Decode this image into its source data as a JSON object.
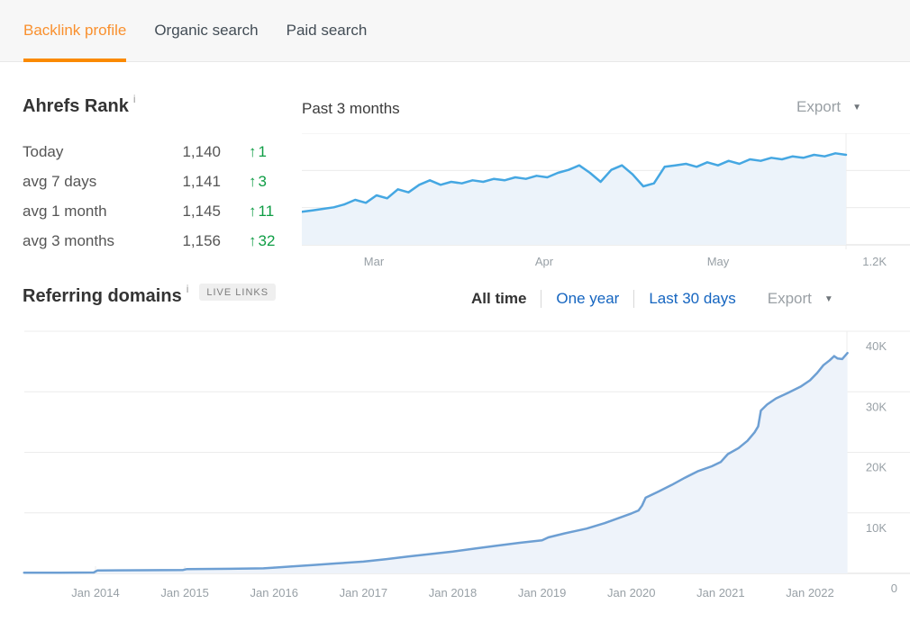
{
  "colors": {
    "accent_orange": "#fb8a00",
    "active_tab_text": "#f9902e",
    "link_blue": "#1565c0",
    "positive_green": "#0f9d45",
    "rank_line_blue": "#45a7e2",
    "domains_line_blue": "#6d9fd3",
    "area_fill": "#eef3fa",
    "grid_gray": "#ececec",
    "axis_label_gray": "#98a0a6",
    "tabbar_bg": "#f7f7f7"
  },
  "tab_bar": {
    "tabs": [
      {
        "label": "Backlink profile",
        "active": true
      },
      {
        "label": "Organic search",
        "active": false
      },
      {
        "label": "Paid search",
        "active": false
      }
    ]
  },
  "ahrefs_rank": {
    "title": "Ahrefs Rank",
    "info_icon": "i",
    "up_arrow": "↑",
    "rows": [
      {
        "label": "Today",
        "value": "1,140",
        "change": "1"
      },
      {
        "label": "avg 7 days",
        "value": "1,141",
        "change": "3"
      },
      {
        "label": "avg 1 month",
        "value": "1,145",
        "change": "11"
      },
      {
        "label": "avg 3 months",
        "value": "1,156",
        "change": "32"
      }
    ]
  },
  "rank_panel": {
    "title": "Past 3 months",
    "export_label": "Export",
    "caret_icon": "▼"
  },
  "referring_panel": {
    "title": "Referring domains",
    "info_icon": "i",
    "badge": "LIVE LINKS",
    "filters": [
      {
        "label": "All time",
        "active": true
      },
      {
        "label": "One year",
        "active": false
      },
      {
        "label": "Last 30 days",
        "active": false
      }
    ],
    "export_label": "Export",
    "caret_icon": "▼"
  },
  "chart_data": [
    {
      "id": "ahrefs-rank-chart",
      "type": "area",
      "title": "Past 3 months",
      "x_tick_labels": [
        "Mar",
        "Apr",
        "May"
      ],
      "y_bottom_label": "1.2K",
      "y_axis": {
        "bottom_value": 1200,
        "inverted": true,
        "note": "lower rank number is better, plotted higher"
      },
      "series": [
        {
          "name": "Ahrefs Rank",
          "values": [
            1178,
            1177,
            1176,
            1175,
            1173,
            1170,
            1172,
            1167,
            1169,
            1163,
            1165,
            1160,
            1157,
            1160,
            1158,
            1159,
            1157,
            1158,
            1156,
            1157,
            1155,
            1156,
            1154,
            1155,
            1152,
            1150,
            1147,
            1152,
            1158,
            1150,
            1147,
            1153,
            1161,
            1159,
            1148,
            1147,
            1146,
            1148,
            1145,
            1147,
            1144,
            1146,
            1143,
            1144,
            1142,
            1143,
            1141,
            1142,
            1140,
            1141,
            1139,
            1140
          ]
        }
      ]
    },
    {
      "id": "referring-domains-chart",
      "type": "area",
      "title": "Referring domains (All time)",
      "x_tick_labels": [
        "Jan 2014",
        "Jan 2015",
        "Jan 2016",
        "Jan 2017",
        "Jan 2018",
        "Jan 2019",
        "Jan 2020",
        "Jan 2021",
        "Jan 2022"
      ],
      "y_tick_labels": [
        "40K",
        "30K",
        "20K",
        "10K",
        "0"
      ],
      "ylim": [
        0,
        40000
      ],
      "xlim_years": [
        2013.2,
        2022.42
      ],
      "series": [
        {
          "name": "Referring domains",
          "points": [
            [
              2013.2,
              100
            ],
            [
              2013.6,
              120
            ],
            [
              2013.98,
              150
            ],
            [
              2014.02,
              480
            ],
            [
              2014.5,
              520
            ],
            [
              2014.98,
              560
            ],
            [
              2015.02,
              700
            ],
            [
              2015.5,
              760
            ],
            [
              2015.88,
              830
            ],
            [
              2016.0,
              950
            ],
            [
              2016.2,
              1150
            ],
            [
              2016.45,
              1400
            ],
            [
              2016.7,
              1650
            ],
            [
              2017.0,
              1950
            ],
            [
              2017.25,
              2350
            ],
            [
              2017.5,
              2800
            ],
            [
              2017.75,
              3200
            ],
            [
              2018.0,
              3600
            ],
            [
              2018.25,
              4100
            ],
            [
              2018.5,
              4600
            ],
            [
              2018.75,
              5050
            ],
            [
              2019.0,
              5450
            ],
            [
              2019.07,
              5950
            ],
            [
              2019.25,
              6600
            ],
            [
              2019.5,
              7400
            ],
            [
              2019.7,
              8300
            ],
            [
              2019.85,
              9100
            ],
            [
              2020.0,
              9900
            ],
            [
              2020.08,
              10400
            ],
            [
              2020.12,
              11200
            ],
            [
              2020.16,
              12500
            ],
            [
              2020.3,
              13500
            ],
            [
              2020.45,
              14600
            ],
            [
              2020.6,
              15800
            ],
            [
              2020.75,
              16900
            ],
            [
              2020.9,
              17700
            ],
            [
              2021.0,
              18400
            ],
            [
              2021.08,
              19700
            ],
            [
              2021.2,
              20700
            ],
            [
              2021.3,
              21900
            ],
            [
              2021.38,
              23300
            ],
            [
              2021.42,
              24300
            ],
            [
              2021.45,
              26900
            ],
            [
              2021.52,
              27900
            ],
            [
              2021.62,
              28900
            ],
            [
              2021.75,
              29800
            ],
            [
              2021.9,
              30900
            ],
            [
              2022.0,
              31900
            ],
            [
              2022.08,
              33100
            ],
            [
              2022.15,
              34400
            ],
            [
              2022.22,
              35200
            ],
            [
              2022.27,
              35900
            ],
            [
              2022.31,
              35500
            ],
            [
              2022.36,
              35400
            ],
            [
              2022.42,
              36400
            ]
          ]
        }
      ]
    }
  ]
}
